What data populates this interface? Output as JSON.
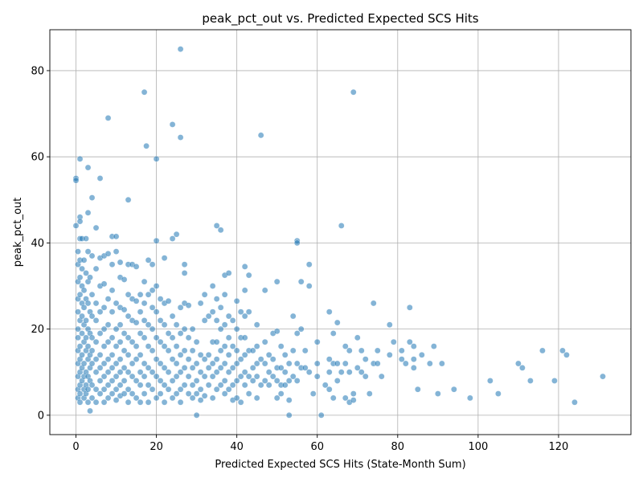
{
  "chart_data": {
    "type": "scatter",
    "title": "peak_pct_out vs. Predicted Expected SCS Hits",
    "xlabel": "Predicted Expected SCS Hits (State-Month Sum)",
    "ylabel": "peak_pct_out",
    "xlim": [
      -6.5,
      138
    ],
    "ylim": [
      -4.5,
      89.5
    ],
    "xticks": [
      "0",
      "20",
      "40",
      "60",
      "80",
      "100",
      "120"
    ],
    "xtick_values": [
      0,
      20,
      40,
      60,
      80,
      100,
      120
    ],
    "yticks": [
      "0",
      "20",
      "40",
      "60",
      "80"
    ],
    "ytick_values": [
      0,
      20,
      40,
      60,
      80
    ],
    "grid": true,
    "marker_color": "#1f77b4",
    "marker_edge": "#ffffff",
    "marker_alpha": 0.55,
    "points": [
      [
        0,
        55
      ],
      [
        0,
        54.5
      ],
      [
        0,
        44
      ],
      [
        0.5,
        38
      ],
      [
        0.5,
        35
      ],
      [
        0.5,
        31
      ],
      [
        0.5,
        27
      ],
      [
        0.5,
        24
      ],
      [
        0.5,
        20
      ],
      [
        0.5,
        18
      ],
      [
        0.5,
        15
      ],
      [
        0.5,
        12
      ],
      [
        0.5,
        9
      ],
      [
        0.5,
        6
      ],
      [
        0.5,
        4
      ],
      [
        1,
        59.5
      ],
      [
        1,
        46
      ],
      [
        1,
        45
      ],
      [
        1,
        41
      ],
      [
        1,
        36
      ],
      [
        1,
        32
      ],
      [
        1,
        28
      ],
      [
        1,
        22
      ],
      [
        1,
        16
      ],
      [
        1,
        13
      ],
      [
        1,
        10
      ],
      [
        1,
        7
      ],
      [
        1,
        5
      ],
      [
        1,
        3
      ],
      [
        1.5,
        41
      ],
      [
        1.5,
        34
      ],
      [
        1.5,
        30
      ],
      [
        1.5,
        26
      ],
      [
        1.5,
        23
      ],
      [
        1.5,
        19
      ],
      [
        1.5,
        14
      ],
      [
        1.5,
        11
      ],
      [
        1.5,
        8
      ],
      [
        2,
        36
      ],
      [
        2,
        29
      ],
      [
        2,
        25
      ],
      [
        2,
        21
      ],
      [
        2,
        17
      ],
      [
        2,
        12
      ],
      [
        2,
        9
      ],
      [
        2,
        6
      ],
      [
        2,
        4
      ],
      [
        2.5,
        41
      ],
      [
        2.5,
        33
      ],
      [
        2.5,
        27
      ],
      [
        2.5,
        22
      ],
      [
        2.5,
        18
      ],
      [
        2.5,
        15
      ],
      [
        2.5,
        10
      ],
      [
        2.5,
        7
      ],
      [
        2.5,
        5
      ],
      [
        3,
        47
      ],
      [
        3,
        57.5
      ],
      [
        3,
        38
      ],
      [
        3,
        31
      ],
      [
        3,
        26
      ],
      [
        3,
        20
      ],
      [
        3,
        16
      ],
      [
        3,
        13
      ],
      [
        3,
        9
      ],
      [
        3,
        6
      ],
      [
        3,
        3
      ],
      [
        3.5,
        32
      ],
      [
        3.5,
        24
      ],
      [
        3.5,
        19
      ],
      [
        3.5,
        14
      ],
      [
        3.5,
        11
      ],
      [
        3.5,
        8
      ],
      [
        3.5,
        1
      ],
      [
        4,
        50.5
      ],
      [
        4,
        37
      ],
      [
        4,
        28
      ],
      [
        4,
        23
      ],
      [
        4,
        18
      ],
      [
        4,
        15
      ],
      [
        4,
        12
      ],
      [
        4,
        7
      ],
      [
        4,
        4
      ],
      [
        5,
        43.5
      ],
      [
        5,
        34
      ],
      [
        5,
        26
      ],
      [
        5,
        22
      ],
      [
        5,
        17
      ],
      [
        5,
        13
      ],
      [
        5,
        10
      ],
      [
        5,
        6
      ],
      [
        5,
        3
      ],
      [
        6,
        55
      ],
      [
        6,
        36.5
      ],
      [
        6,
        30
      ],
      [
        6,
        24
      ],
      [
        6,
        19
      ],
      [
        6,
        14
      ],
      [
        6,
        11
      ],
      [
        6,
        8
      ],
      [
        6,
        5
      ],
      [
        7,
        37
      ],
      [
        7,
        30.5
      ],
      [
        7,
        25
      ],
      [
        7,
        20
      ],
      [
        7,
        16
      ],
      [
        7,
        12
      ],
      [
        7,
        9
      ],
      [
        7,
        6
      ],
      [
        7,
        3
      ],
      [
        8,
        69
      ],
      [
        8,
        37.5
      ],
      [
        8,
        27
      ],
      [
        8,
        21
      ],
      [
        8,
        17
      ],
      [
        8,
        13
      ],
      [
        8,
        10
      ],
      [
        8,
        7
      ],
      [
        8,
        4
      ],
      [
        9,
        41.5
      ],
      [
        9,
        35
      ],
      [
        9,
        29
      ],
      [
        9,
        24
      ],
      [
        9,
        18
      ],
      [
        9,
        14
      ],
      [
        9,
        11
      ],
      [
        9,
        8
      ],
      [
        9,
        5
      ],
      [
        10,
        41.5
      ],
      [
        10,
        38
      ],
      [
        10,
        26
      ],
      [
        10,
        20
      ],
      [
        10,
        16
      ],
      [
        10,
        12
      ],
      [
        10,
        9
      ],
      [
        10,
        6
      ],
      [
        10,
        3.5
      ],
      [
        11,
        35.5
      ],
      [
        11,
        32
      ],
      [
        11,
        25
      ],
      [
        11,
        21
      ],
      [
        11,
        17
      ],
      [
        11,
        13
      ],
      [
        11,
        10
      ],
      [
        11,
        7
      ],
      [
        11,
        4.5
      ],
      [
        12,
        31.5
      ],
      [
        12,
        24.5
      ],
      [
        12,
        19
      ],
      [
        12,
        15
      ],
      [
        12,
        11
      ],
      [
        12,
        8
      ],
      [
        12,
        5
      ],
      [
        13,
        50
      ],
      [
        13,
        35
      ],
      [
        13,
        28
      ],
      [
        13,
        23
      ],
      [
        13,
        18
      ],
      [
        13,
        14
      ],
      [
        13,
        10
      ],
      [
        13,
        6
      ],
      [
        13,
        3
      ],
      [
        14,
        35
      ],
      [
        14,
        27
      ],
      [
        14,
        22
      ],
      [
        14,
        17
      ],
      [
        14,
        12
      ],
      [
        14,
        9
      ],
      [
        14,
        5
      ],
      [
        15,
        34.5
      ],
      [
        15,
        26.5
      ],
      [
        15,
        21.5
      ],
      [
        15,
        16
      ],
      [
        15,
        13
      ],
      [
        15,
        8
      ],
      [
        15,
        4
      ],
      [
        16,
        28
      ],
      [
        16,
        24
      ],
      [
        16,
        19
      ],
      [
        16,
        14
      ],
      [
        16,
        10
      ],
      [
        16,
        7
      ],
      [
        16,
        3
      ],
      [
        17,
        75
      ],
      [
        17,
        31
      ],
      [
        17,
        26
      ],
      [
        17,
        22
      ],
      [
        17,
        18
      ],
      [
        17,
        12
      ],
      [
        17,
        9
      ],
      [
        17,
        5
      ],
      [
        17.5,
        62.5
      ],
      [
        18,
        36
      ],
      [
        18,
        28
      ],
      [
        18,
        21
      ],
      [
        18,
        16
      ],
      [
        18,
        11
      ],
      [
        18,
        7
      ],
      [
        18,
        3
      ],
      [
        19,
        35
      ],
      [
        19,
        29
      ],
      [
        19,
        25
      ],
      [
        19,
        20
      ],
      [
        19,
        15
      ],
      [
        19,
        10
      ],
      [
        19,
        6
      ],
      [
        20,
        59.5
      ],
      [
        20,
        40.5
      ],
      [
        20,
        30
      ],
      [
        20,
        24
      ],
      [
        20,
        18
      ],
      [
        20,
        13
      ],
      [
        20,
        9
      ],
      [
        20,
        4
      ],
      [
        21,
        27
      ],
      [
        21,
        22
      ],
      [
        21,
        17
      ],
      [
        21,
        12
      ],
      [
        21,
        8
      ],
      [
        21,
        5
      ],
      [
        22,
        36.5
      ],
      [
        22,
        26
      ],
      [
        22,
        21
      ],
      [
        22,
        16
      ],
      [
        22,
        11
      ],
      [
        22,
        7
      ],
      [
        22,
        3
      ],
      [
        23,
        26.5
      ],
      [
        23,
        19
      ],
      [
        23,
        15
      ],
      [
        23,
        10
      ],
      [
        23,
        6
      ],
      [
        24,
        67.5
      ],
      [
        24,
        41
      ],
      [
        24,
        23
      ],
      [
        24,
        18
      ],
      [
        24,
        13
      ],
      [
        24,
        8
      ],
      [
        24,
        4
      ],
      [
        25,
        42
      ],
      [
        25,
        21
      ],
      [
        25,
        16
      ],
      [
        25,
        12
      ],
      [
        25,
        9
      ],
      [
        25,
        5
      ],
      [
        26,
        85
      ],
      [
        26,
        64.5
      ],
      [
        26,
        25
      ],
      [
        26,
        19
      ],
      [
        26,
        14
      ],
      [
        26,
        10
      ],
      [
        26,
        6
      ],
      [
        26,
        3
      ],
      [
        27,
        35
      ],
      [
        27,
        33
      ],
      [
        27,
        26
      ],
      [
        27,
        20
      ],
      [
        27,
        15
      ],
      [
        27,
        11
      ],
      [
        27,
        7
      ],
      [
        28,
        25.5
      ],
      [
        28,
        18
      ],
      [
        28,
        13
      ],
      [
        28,
        9
      ],
      [
        28,
        5
      ],
      [
        29,
        20
      ],
      [
        29,
        15
      ],
      [
        29,
        11
      ],
      [
        29,
        7
      ],
      [
        29,
        4
      ],
      [
        30,
        0
      ],
      [
        30,
        17
      ],
      [
        30,
        12
      ],
      [
        30,
        8
      ],
      [
        30,
        5
      ],
      [
        31,
        26
      ],
      [
        31,
        14
      ],
      [
        31,
        10
      ],
      [
        31,
        6
      ],
      [
        31,
        3.5
      ],
      [
        32,
        28
      ],
      [
        32,
        22
      ],
      [
        32,
        13
      ],
      [
        32,
        9
      ],
      [
        32,
        4.5
      ],
      [
        33,
        23
      ],
      [
        33,
        14
      ],
      [
        33,
        11
      ],
      [
        33,
        7
      ],
      [
        34,
        30
      ],
      [
        34,
        24
      ],
      [
        34,
        17
      ],
      [
        34,
        12
      ],
      [
        34,
        9
      ],
      [
        34,
        4
      ],
      [
        35,
        44
      ],
      [
        35,
        27
      ],
      [
        35,
        22
      ],
      [
        35,
        17
      ],
      [
        35,
        13
      ],
      [
        35,
        10
      ],
      [
        35,
        6
      ],
      [
        36,
        43
      ],
      [
        36,
        25
      ],
      [
        36,
        20
      ],
      [
        36,
        15
      ],
      [
        36,
        11
      ],
      [
        36,
        7
      ],
      [
        37,
        32.5
      ],
      [
        37,
        28
      ],
      [
        37,
        21
      ],
      [
        37,
        16
      ],
      [
        37,
        12
      ],
      [
        37,
        8
      ],
      [
        37,
        5
      ],
      [
        38,
        33
      ],
      [
        38,
        23
      ],
      [
        38,
        18
      ],
      [
        38,
        14
      ],
      [
        38,
        10
      ],
      [
        38,
        6
      ],
      [
        39,
        22
      ],
      [
        39,
        16
      ],
      [
        39,
        11
      ],
      [
        39,
        7
      ],
      [
        39,
        3.5
      ],
      [
        40,
        26.5
      ],
      [
        40,
        20
      ],
      [
        40,
        15
      ],
      [
        40,
        12
      ],
      [
        40,
        8
      ],
      [
        40,
        4
      ],
      [
        41,
        24
      ],
      [
        41,
        18
      ],
      [
        41,
        13
      ],
      [
        41,
        9
      ],
      [
        41,
        3
      ],
      [
        42,
        34.5
      ],
      [
        42,
        29
      ],
      [
        42,
        23
      ],
      [
        42,
        18
      ],
      [
        42,
        14
      ],
      [
        42,
        10
      ],
      [
        42,
        7
      ],
      [
        43,
        32.5
      ],
      [
        43,
        24
      ],
      [
        43,
        15
      ],
      [
        43,
        9
      ],
      [
        43,
        5
      ],
      [
        44,
        15
      ],
      [
        44,
        11
      ],
      [
        44,
        8
      ],
      [
        45,
        21
      ],
      [
        45,
        16
      ],
      [
        45,
        12
      ],
      [
        45,
        9
      ],
      [
        45,
        4
      ],
      [
        46,
        65
      ],
      [
        46,
        13
      ],
      [
        46,
        7
      ],
      [
        47,
        29
      ],
      [
        47,
        17
      ],
      [
        47,
        12
      ],
      [
        47,
        8
      ],
      [
        48,
        14
      ],
      [
        48,
        10
      ],
      [
        48,
        7
      ],
      [
        49,
        19
      ],
      [
        49,
        13
      ],
      [
        49,
        9
      ],
      [
        50,
        31
      ],
      [
        50,
        19.5
      ],
      [
        50,
        11
      ],
      [
        50,
        8
      ],
      [
        50,
        4
      ],
      [
        51,
        16
      ],
      [
        51,
        11
      ],
      [
        51,
        7
      ],
      [
        51,
        5
      ],
      [
        52,
        14
      ],
      [
        52,
        10
      ],
      [
        52,
        7
      ],
      [
        53,
        0
      ],
      [
        53,
        12
      ],
      [
        53,
        8
      ],
      [
        53,
        3.5
      ],
      [
        54,
        23
      ],
      [
        54,
        15
      ],
      [
        54,
        9
      ],
      [
        55,
        40.5
      ],
      [
        55,
        40
      ],
      [
        55,
        19
      ],
      [
        55,
        12
      ],
      [
        55,
        8
      ],
      [
        56,
        31
      ],
      [
        56,
        20
      ],
      [
        56,
        11
      ],
      [
        57,
        15
      ],
      [
        57,
        11
      ],
      [
        58,
        35
      ],
      [
        58,
        30
      ],
      [
        58,
        10
      ],
      [
        59,
        5
      ],
      [
        60,
        17
      ],
      [
        60,
        12
      ],
      [
        60,
        9
      ],
      [
        61,
        0
      ],
      [
        62,
        7
      ],
      [
        63,
        24
      ],
      [
        63,
        13
      ],
      [
        63,
        10
      ],
      [
        63,
        6
      ],
      [
        64,
        19
      ],
      [
        64,
        12
      ],
      [
        64,
        4
      ],
      [
        65,
        21.5
      ],
      [
        65,
        12
      ],
      [
        65,
        8
      ],
      [
        66,
        44
      ],
      [
        66,
        10
      ],
      [
        67,
        16
      ],
      [
        67,
        12
      ],
      [
        67,
        4
      ],
      [
        68,
        15
      ],
      [
        68,
        10
      ],
      [
        68,
        3
      ],
      [
        69,
        75
      ],
      [
        69,
        5
      ],
      [
        69,
        3.5
      ],
      [
        70,
        18
      ],
      [
        70,
        11
      ],
      [
        71,
        15
      ],
      [
        71,
        10
      ],
      [
        72,
        13
      ],
      [
        72,
        9
      ],
      [
        73,
        5
      ],
      [
        74,
        26
      ],
      [
        74,
        12
      ],
      [
        75,
        15
      ],
      [
        75,
        12
      ],
      [
        76,
        9
      ],
      [
        78,
        21
      ],
      [
        78,
        14
      ],
      [
        79,
        17
      ],
      [
        81,
        13
      ],
      [
        81,
        15
      ],
      [
        82,
        12
      ],
      [
        83,
        25
      ],
      [
        83,
        17
      ],
      [
        84,
        16
      ],
      [
        84,
        11
      ],
      [
        84,
        13
      ],
      [
        85,
        6
      ],
      [
        86,
        14
      ],
      [
        88,
        12
      ],
      [
        89,
        16
      ],
      [
        90,
        5
      ],
      [
        91,
        12
      ],
      [
        94,
        6
      ],
      [
        98,
        4
      ],
      [
        103,
        8
      ],
      [
        105,
        5
      ],
      [
        110,
        12
      ],
      [
        111,
        11
      ],
      [
        113,
        8
      ],
      [
        116,
        15
      ],
      [
        119,
        8
      ],
      [
        121,
        15
      ],
      [
        122,
        14
      ],
      [
        124,
        3
      ],
      [
        131,
        9
      ]
    ]
  }
}
